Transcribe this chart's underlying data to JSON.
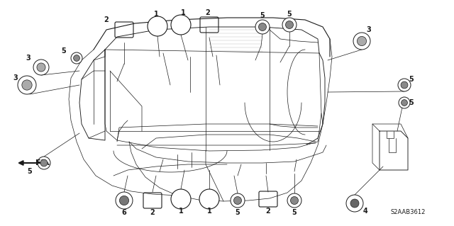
{
  "bg_color": "#ffffff",
  "line_color": "#1a1a1a",
  "diagram_code": "S2AAB3612",
  "fig_width": 6.4,
  "fig_height": 3.19
}
